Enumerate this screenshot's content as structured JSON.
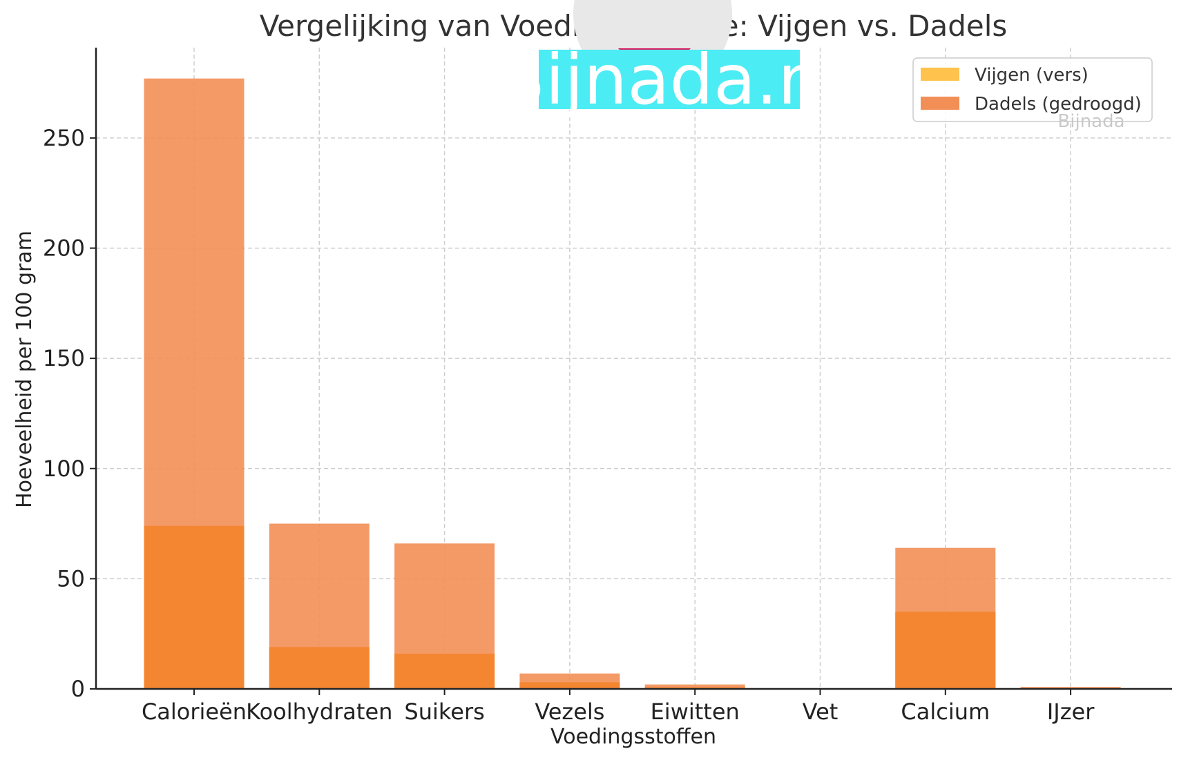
{
  "chart_data": {
    "type": "bar",
    "title": "Vergelijking van Voedingswaarde: Vijgen vs. Dadels",
    "xlabel": "Voedingsstoffen",
    "ylabel": "Hoeveelheid per 100 gram",
    "categories": [
      "Calorieën",
      "Koolhydraten",
      "Suikers",
      "Vezels",
      "Eiwitten",
      "Vet",
      "Calcium",
      "IJzer"
    ],
    "series": [
      {
        "name": "Vijgen (vers)",
        "color": "#ffc34d",
        "opacity": 0.9,
        "values": [
          74,
          19,
          16,
          3,
          0.75,
          0.3,
          35,
          0.37
        ]
      },
      {
        "name": "Dadels (gedroogd)",
        "color": "#f28f56",
        "opacity": 0.9,
        "values": [
          277,
          75,
          66,
          7,
          2,
          0.2,
          64,
          0.9
        ]
      }
    ],
    "ylim": [
      0,
      291
    ],
    "yticks": [
      0,
      50,
      100,
      150,
      200,
      250
    ],
    "grid": true,
    "legend_position": "top-right",
    "overlay_color": "#f58631"
  },
  "watermark": {
    "logo_text": "Bijnada.nl",
    "small_text": "Bijnada",
    "logo_bg": "#4cecf4",
    "heart_color": "#d81b60"
  }
}
